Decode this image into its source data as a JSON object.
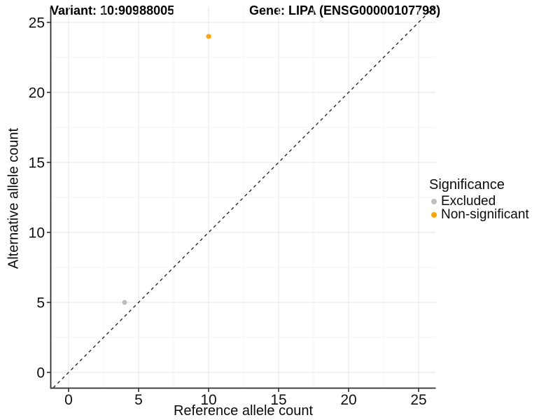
{
  "title": {
    "variant": "Variant: 10:90988005",
    "gene": "Gene: LIPA (ENSG00000107798)"
  },
  "axes": {
    "x_label": "Reference allele count",
    "y_label": "Alternative allele count"
  },
  "legend": {
    "title": "Significance",
    "items": [
      {
        "label": "Excluded",
        "color": "#BEBEBE"
      },
      {
        "label": "Non-significant",
        "color": "#FFA500"
      }
    ]
  },
  "chart_data": {
    "type": "scatter",
    "title": "Variant: 10:90988005    Gene: LIPA (ENSG00000107798)",
    "xlabel": "Reference allele count",
    "ylabel": "Alternative allele count",
    "xlim": [
      -1.25,
      26.25
    ],
    "ylim": [
      -1.1,
      26.1
    ],
    "ticks": [
      0,
      5,
      10,
      15,
      20,
      25
    ],
    "grid": "major and minor gridlines, light gray on white",
    "legend_position": "right",
    "series": [
      {
        "name": "Excluded",
        "color": "#BEBEBE",
        "points": [
          {
            "x": 4,
            "y": 5
          }
        ]
      },
      {
        "name": "Non-significant",
        "color": "#FFA500",
        "points": [
          {
            "x": 10,
            "y": 24
          }
        ]
      }
    ],
    "reference_line": {
      "kind": "identity y = x",
      "style": "dashed",
      "color": "#1a1a1a"
    },
    "colors": {
      "grid_major": "#e9e9e9",
      "grid_minor": "#f5f5f5",
      "axis_line": "#2e2e2e",
      "tick_text": "#111111"
    }
  }
}
